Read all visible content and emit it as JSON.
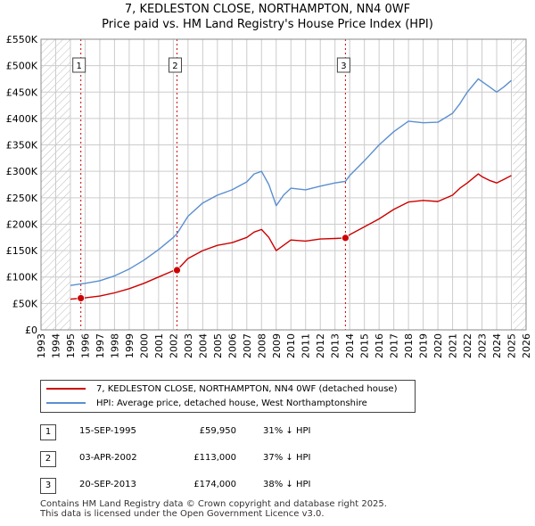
{
  "title": {
    "line1": "7, KEDLESTON CLOSE, NORTHAMPTON, NN4 0WF",
    "line2": "Price paid vs. HM Land Registry's House Price Index (HPI)"
  },
  "colors": {
    "price": "#cc0000",
    "hpi": "#5b8fd0",
    "marker": "#cc0000",
    "grid": "#cccccc",
    "hatch": "#bbbbbb"
  },
  "legend": {
    "price_label": "7, KEDLESTON CLOSE, NORTHAMPTON, NN4 0WF (detached house)",
    "hpi_label": "HPI: Average price, detached house, West Northamptonshire"
  },
  "sales": [
    {
      "num": "1",
      "date": "15-SEP-1995",
      "price": "£59,950",
      "hpi": "31% ↓ HPI"
    },
    {
      "num": "2",
      "date": "03-APR-2002",
      "price": "£113,000",
      "hpi": "37% ↓ HPI"
    },
    {
      "num": "3",
      "date": "20-SEP-2013",
      "price": "£174,000",
      "hpi": "38% ↓ HPI"
    }
  ],
  "footer": {
    "line1": "Contains HM Land Registry data © Crown copyright and database right 2025.",
    "line2": "This data is licensed under the Open Government Licence v3.0."
  },
  "chart_data": {
    "type": "line",
    "xlim": [
      1993,
      2026
    ],
    "ylim": [
      0,
      550000
    ],
    "x_ticks": [
      "1993",
      "1994",
      "1995",
      "1996",
      "1997",
      "1998",
      "1999",
      "2000",
      "2001",
      "2002",
      "2003",
      "2004",
      "2005",
      "2006",
      "2007",
      "2008",
      "2009",
      "2010",
      "2011",
      "2012",
      "2013",
      "2014",
      "2015",
      "2016",
      "2017",
      "2018",
      "2019",
      "2020",
      "2021",
      "2022",
      "2023",
      "2024",
      "2025",
      "2026"
    ],
    "y_ticks": [
      {
        "value": 0,
        "label": "£0"
      },
      {
        "value": 50000,
        "label": "£50K"
      },
      {
        "value": 100000,
        "label": "£100K"
      },
      {
        "value": 150000,
        "label": "£150K"
      },
      {
        "value": 200000,
        "label": "£200K"
      },
      {
        "value": 250000,
        "label": "£250K"
      },
      {
        "value": 300000,
        "label": "£300K"
      },
      {
        "value": 350000,
        "label": "£350K"
      },
      {
        "value": 400000,
        "label": "£400K"
      },
      {
        "value": 450000,
        "label": "£450K"
      },
      {
        "value": 500000,
        "label": "£500K"
      },
      {
        "value": 550000,
        "label": "£550K"
      }
    ],
    "hatched_ranges": [
      [
        1993,
        1995.0
      ],
      [
        2025.1,
        2026
      ]
    ],
    "series": [
      {
        "name": "7, KEDLESTON CLOSE, NORTHAMPTON, NN4 0WF (detached house)",
        "x": [
          1995.0,
          1995.71,
          1996.0,
          1997.0,
          1998.0,
          1999.0,
          2000.0,
          2001.0,
          2002.0,
          2002.25,
          2003.0,
          2004.0,
          2005.0,
          2006.0,
          2007.0,
          2007.5,
          2008.0,
          2008.5,
          2009.0,
          2009.5,
          2010.0,
          2011.0,
          2012.0,
          2013.0,
          2013.71,
          2014.0,
          2015.0,
          2016.0,
          2017.0,
          2018.0,
          2019.0,
          2020.0,
          2021.0,
          2021.5,
          2022.0,
          2022.75,
          2023.0,
          2023.5,
          2024.0,
          2024.5,
          2025.0
        ],
        "values": [
          58000,
          59950,
          60500,
          64000,
          70000,
          78000,
          88000,
          100000,
          112000,
          113000,
          135000,
          150000,
          160000,
          165000,
          175000,
          185000,
          190000,
          175000,
          150000,
          160000,
          170000,
          168000,
          172000,
          173000,
          174000,
          180000,
          195000,
          210000,
          228000,
          242000,
          245000,
          243000,
          255000,
          268000,
          278000,
          295000,
          290000,
          283000,
          278000,
          285000,
          292000
        ]
      },
      {
        "name": "HPI: Average price, detached house, West Northamptonshire",
        "x": [
          1995.0,
          1995.71,
          1996.0,
          1997.0,
          1998.0,
          1999.0,
          2000.0,
          2001.0,
          2002.0,
          2002.25,
          2003.0,
          2004.0,
          2005.0,
          2006.0,
          2007.0,
          2007.5,
          2008.0,
          2008.5,
          2009.0,
          2009.5,
          2010.0,
          2011.0,
          2012.0,
          2013.0,
          2013.71,
          2014.0,
          2015.0,
          2016.0,
          2017.0,
          2018.0,
          2019.0,
          2020.0,
          2021.0,
          2021.5,
          2022.0,
          2022.75,
          2023.0,
          2023.5,
          2024.0,
          2024.5,
          2025.0
        ],
        "values": [
          84000,
          87000,
          88000,
          93000,
          102000,
          115000,
          132000,
          152000,
          175000,
          182000,
          215000,
          240000,
          255000,
          265000,
          280000,
          295000,
          300000,
          275000,
          235000,
          255000,
          268000,
          265000,
          272000,
          278000,
          281000,
          292000,
          320000,
          350000,
          375000,
          395000,
          392000,
          393000,
          410000,
          428000,
          450000,
          475000,
          470000,
          460000,
          450000,
          460000,
          472000
        ]
      }
    ],
    "sale_markers": [
      {
        "label": "1",
        "x": 1995.71,
        "y": 59950
      },
      {
        "label": "2",
        "x": 2002.25,
        "y": 113000
      },
      {
        "label": "3",
        "x": 2013.71,
        "y": 174000
      }
    ]
  }
}
